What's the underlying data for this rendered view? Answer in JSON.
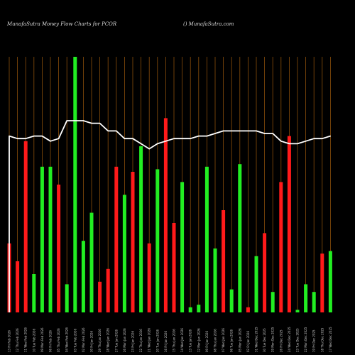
{
  "header": {
    "title": "MunafaSutra  Money Flow  Charts for PCOR",
    "site": "() MunafaSutra.com"
  },
  "colors": {
    "background": "#000000",
    "up": "#22ee22",
    "down": "#ff1a1a",
    "line": "#ffffff",
    "grid": "#8a4e0a"
  },
  "chart_data": {
    "type": "bar",
    "title": "MunafaSutra  Money Flow  Charts for PCOR",
    "grid": true,
    "categories": [
      "13 Fri Feb 2026",
      "12 Thu Feb 2026",
      "11 Wed Feb 2026",
      "10 Tue Feb 2026",
      "09 Mon Feb 2026",
      "06 Fri Feb 2026",
      "05 Thu Feb 2026",
      "04 Wed Feb 2026",
      "03 Tue Feb 2026",
      "02 Mon Feb 2026",
      "30 Fri Jan 2026",
      "29 Thu Jan 2026",
      "28 Wed Jan 2026",
      "27 Tue Jan 2026",
      "26 Mon Jan 2026",
      "23 Fri Jan 2026",
      "22 Thu Jan 2026",
      "21 Wed Jan 2026",
      "20 Tue Jan 2026",
      "16 Fri Jan 2026",
      "15 Thu Jan 2026",
      "14 Wed Jan 2026",
      "13 Tue Jan 2026",
      "12 Mon Jan 2026",
      "09 Fri Jan 2026",
      "08 Thu Jan 2026",
      "07 Wed Jan 2026",
      "06 Tue Jan 2026",
      "05 Mon Jan 2026",
      "02 Fri Jan 2026",
      "31 Wed Dec 2025",
      "30 Tue Dec 2025",
      "29 Mon Dec 2025",
      "26 Fri Dec 2025",
      "24 Wed Dec 2025",
      "23 Tue Dec 2025",
      "22 Mon Dec 2025",
      "19 Fri Dec 2025",
      "18 Thu Dec 2025",
      "17 Wed Dec 2025"
    ],
    "bar_colors": [
      "down",
      "down",
      "down",
      "up",
      "up",
      "up",
      "down",
      "up",
      "up",
      "up",
      "up",
      "down",
      "down",
      "down",
      "up",
      "down",
      "up",
      "down",
      "up",
      "down",
      "down",
      "up",
      "up",
      "up",
      "up",
      "up",
      "down",
      "up",
      "up",
      "down",
      "up",
      "down",
      "up",
      "down",
      "down",
      "up",
      "up",
      "up",
      "down",
      "up"
    ],
    "bar_values": [
      27,
      20,
      67,
      15,
      57,
      57,
      50,
      11,
      100,
      28,
      39,
      12,
      17,
      57,
      46,
      55,
      65,
      27,
      56,
      76,
      35,
      51,
      2,
      3,
      57,
      25,
      40,
      9,
      58,
      2,
      22,
      31,
      8,
      51,
      69,
      1,
      11,
      8,
      23,
      24
    ],
    "line_values": [
      69,
      68,
      68,
      69,
      69,
      67,
      68,
      75,
      75,
      75,
      74,
      74,
      71,
      71,
      68,
      68,
      66,
      64,
      66,
      67,
      68,
      68,
      68,
      69,
      69,
      70,
      71,
      71,
      71,
      71,
      71,
      70,
      70,
      67,
      66,
      66,
      67,
      68,
      68,
      69
    ],
    "ylim": [
      0,
      100
    ]
  }
}
